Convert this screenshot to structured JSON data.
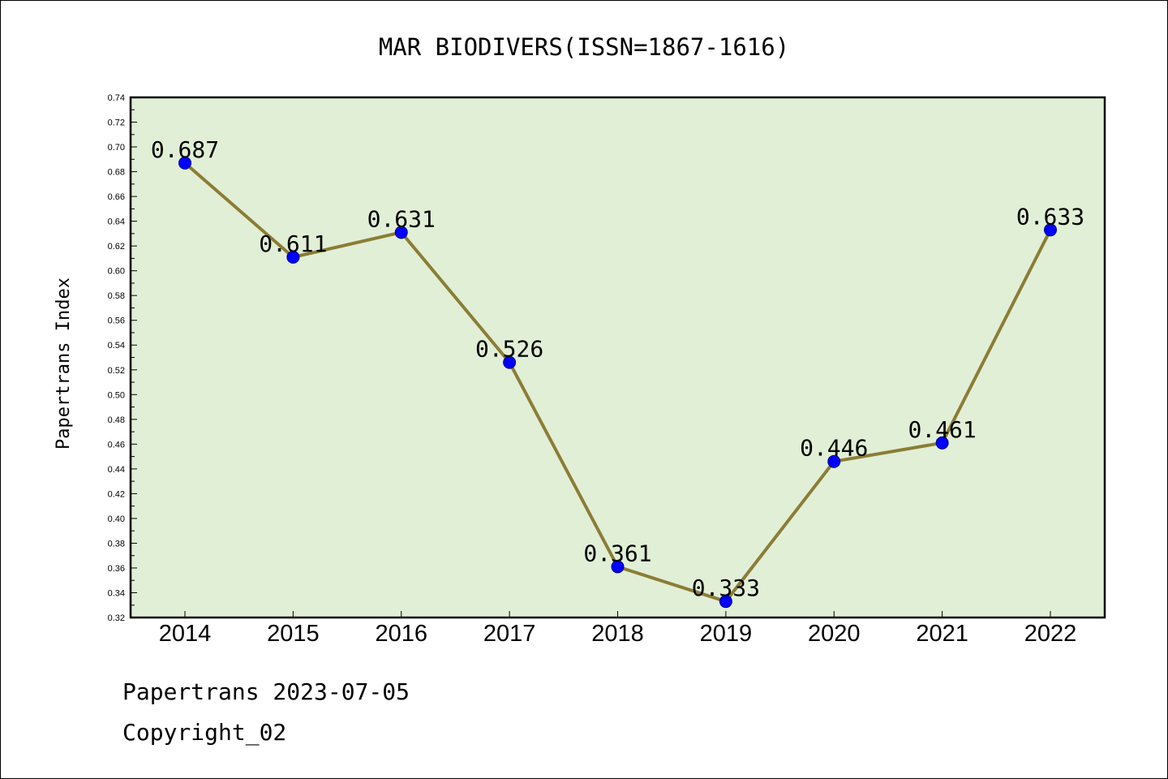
{
  "chart_data": {
    "type": "line",
    "title": "MAR BIODIVERS(ISSN=1867-1616)",
    "xlabel": "",
    "ylabel": "Papertrans Index",
    "categories": [
      "2014",
      "2015",
      "2016",
      "2017",
      "2018",
      "2019",
      "2020",
      "2021",
      "2022"
    ],
    "series": [
      {
        "values": [
          0.687,
          0.611,
          0.631,
          0.526,
          0.361,
          0.333,
          0.446,
          0.461,
          0.633
        ],
        "data_labels": [
          "0.687",
          "0.611",
          "0.631",
          "0.526",
          "0.361",
          "0.333",
          "0.446",
          "0.461",
          "0.633"
        ]
      }
    ],
    "ylim": [
      0.32,
      0.74
    ],
    "yticks": [
      "0.32",
      "0.34",
      "0.36",
      "0.38",
      "0.40",
      "0.42",
      "0.44",
      "0.46",
      "0.48",
      "0.50",
      "0.52",
      "0.54",
      "0.56",
      "0.58",
      "0.60",
      "0.62",
      "0.64",
      "0.66",
      "0.68",
      "0.70",
      "0.72",
      "0.74"
    ],
    "grid": false,
    "legend": "none",
    "colors": {
      "plot_background": "#e1efd6",
      "line": "#8b7d35",
      "marker": "#0000ff"
    }
  },
  "footer": {
    "line1": "Papertrans 2023-07-05",
    "line2": "Copyright_02"
  }
}
